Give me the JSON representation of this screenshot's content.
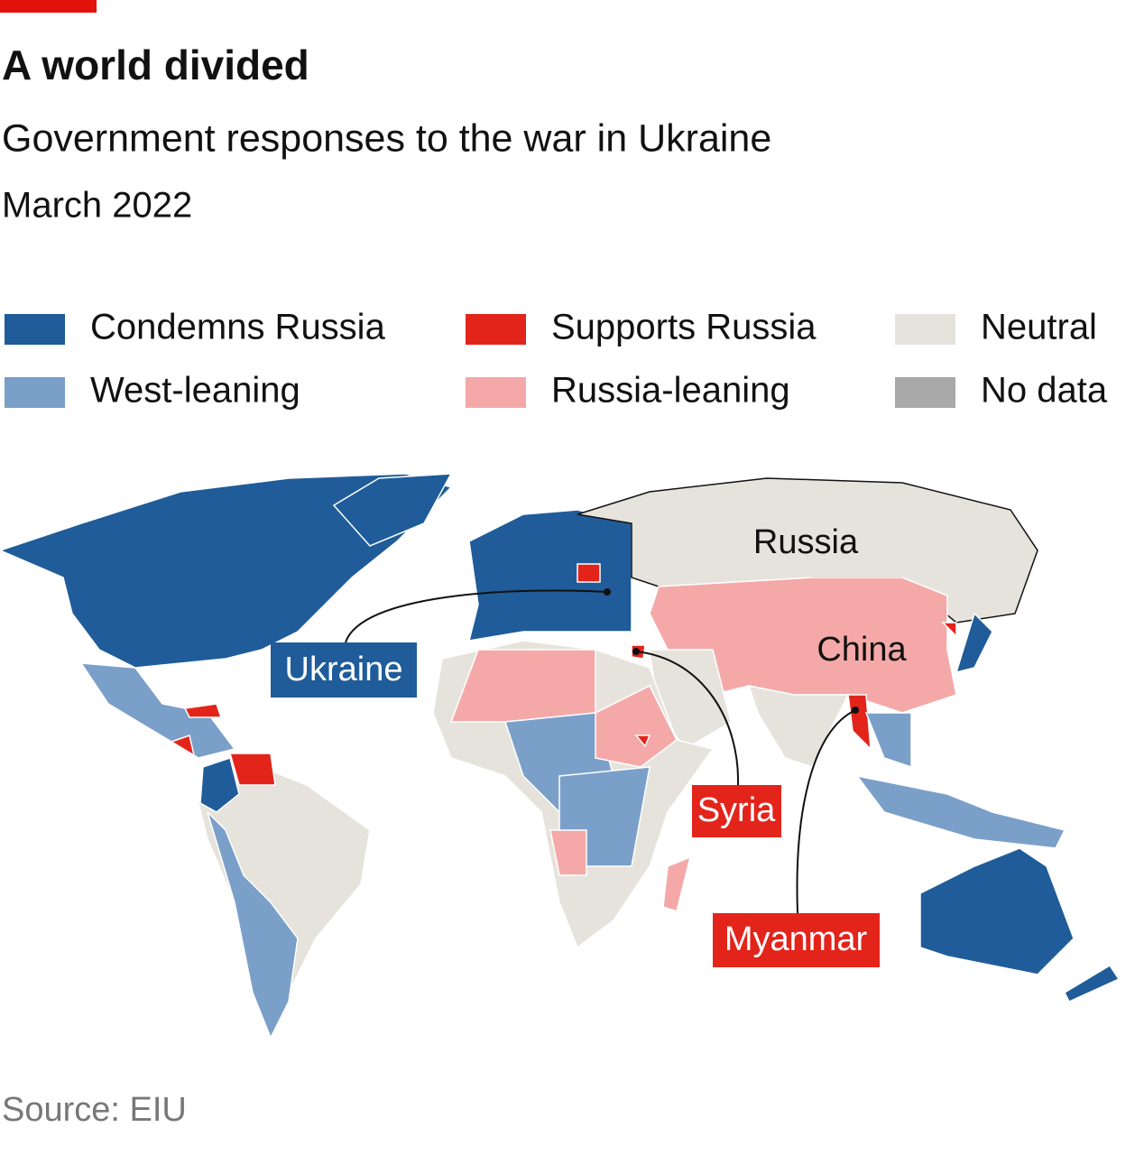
{
  "header": {
    "title": "A world divided",
    "subtitle": "Government responses to the war in Ukraine",
    "date": "March 2022"
  },
  "legend": [
    {
      "name": "Condemns Russia",
      "color": "#1f5c99"
    },
    {
      "name": "West-leaning",
      "color": "#7a9fc9"
    },
    {
      "name": "Supports Russia",
      "color": "#e3241b"
    },
    {
      "name": "Russia-leaning",
      "color": "#f4a9a8"
    },
    {
      "name": "Neutral",
      "color": "#e6e3dc"
    },
    {
      "name": "No data",
      "color": "#a8a8a8"
    }
  ],
  "map_labels": {
    "russia": "Russia",
    "china": "China",
    "ukraine": "Ukraine",
    "syria": "Syria",
    "myanmar": "Myanmar"
  },
  "source": "Source: EIU"
}
